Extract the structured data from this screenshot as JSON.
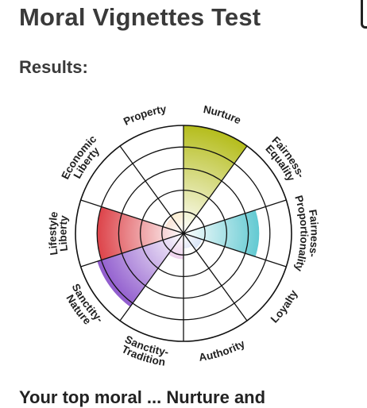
{
  "page": {
    "title": "Moral Vignettes Test",
    "results_heading": "Results:",
    "footer_text": "Your top moral ... Nurture and"
  },
  "chart_data": {
    "type": "polar-area",
    "rings": 5,
    "max_value": 5,
    "grid": true,
    "categories": [
      {
        "label": "Nurture",
        "value": 5,
        "color": "#b5bd1c"
      },
      {
        "label": "Fairness-\nEquality",
        "value": 0,
        "color": "#c9c24a"
      },
      {
        "label": "Fairness-\nProportionality",
        "value": 3.5,
        "color": "#20b3bf"
      },
      {
        "label": "Loyalty",
        "value": 0,
        "color": "#2a6fcf"
      },
      {
        "label": "Authority",
        "value": 0.7,
        "color": "#4a63d0"
      },
      {
        "label": "Sanctity-\nTradition",
        "value": 1.2,
        "color": "#b43fb1"
      },
      {
        "label": "Sanctity-\nNature",
        "value": 4.2,
        "color": "#7b3cc4"
      },
      {
        "label": "Lifestyle\nLiberty",
        "value": 4,
        "color": "#d4141c"
      },
      {
        "label": "Economic\nLiberty",
        "value": 0,
        "color": "#e56b1c"
      },
      {
        "label": "Property",
        "value": 1,
        "color": "#f1a81b"
      }
    ],
    "small_wedges": [
      {
        "index": 3,
        "value": 0.9,
        "color": "#2a6fcf"
      },
      {
        "index": 8,
        "value": 0.9,
        "color": "#e56b1c"
      },
      {
        "index": 0,
        "value": 0.9,
        "color": "#6f8f1a"
      }
    ]
  }
}
